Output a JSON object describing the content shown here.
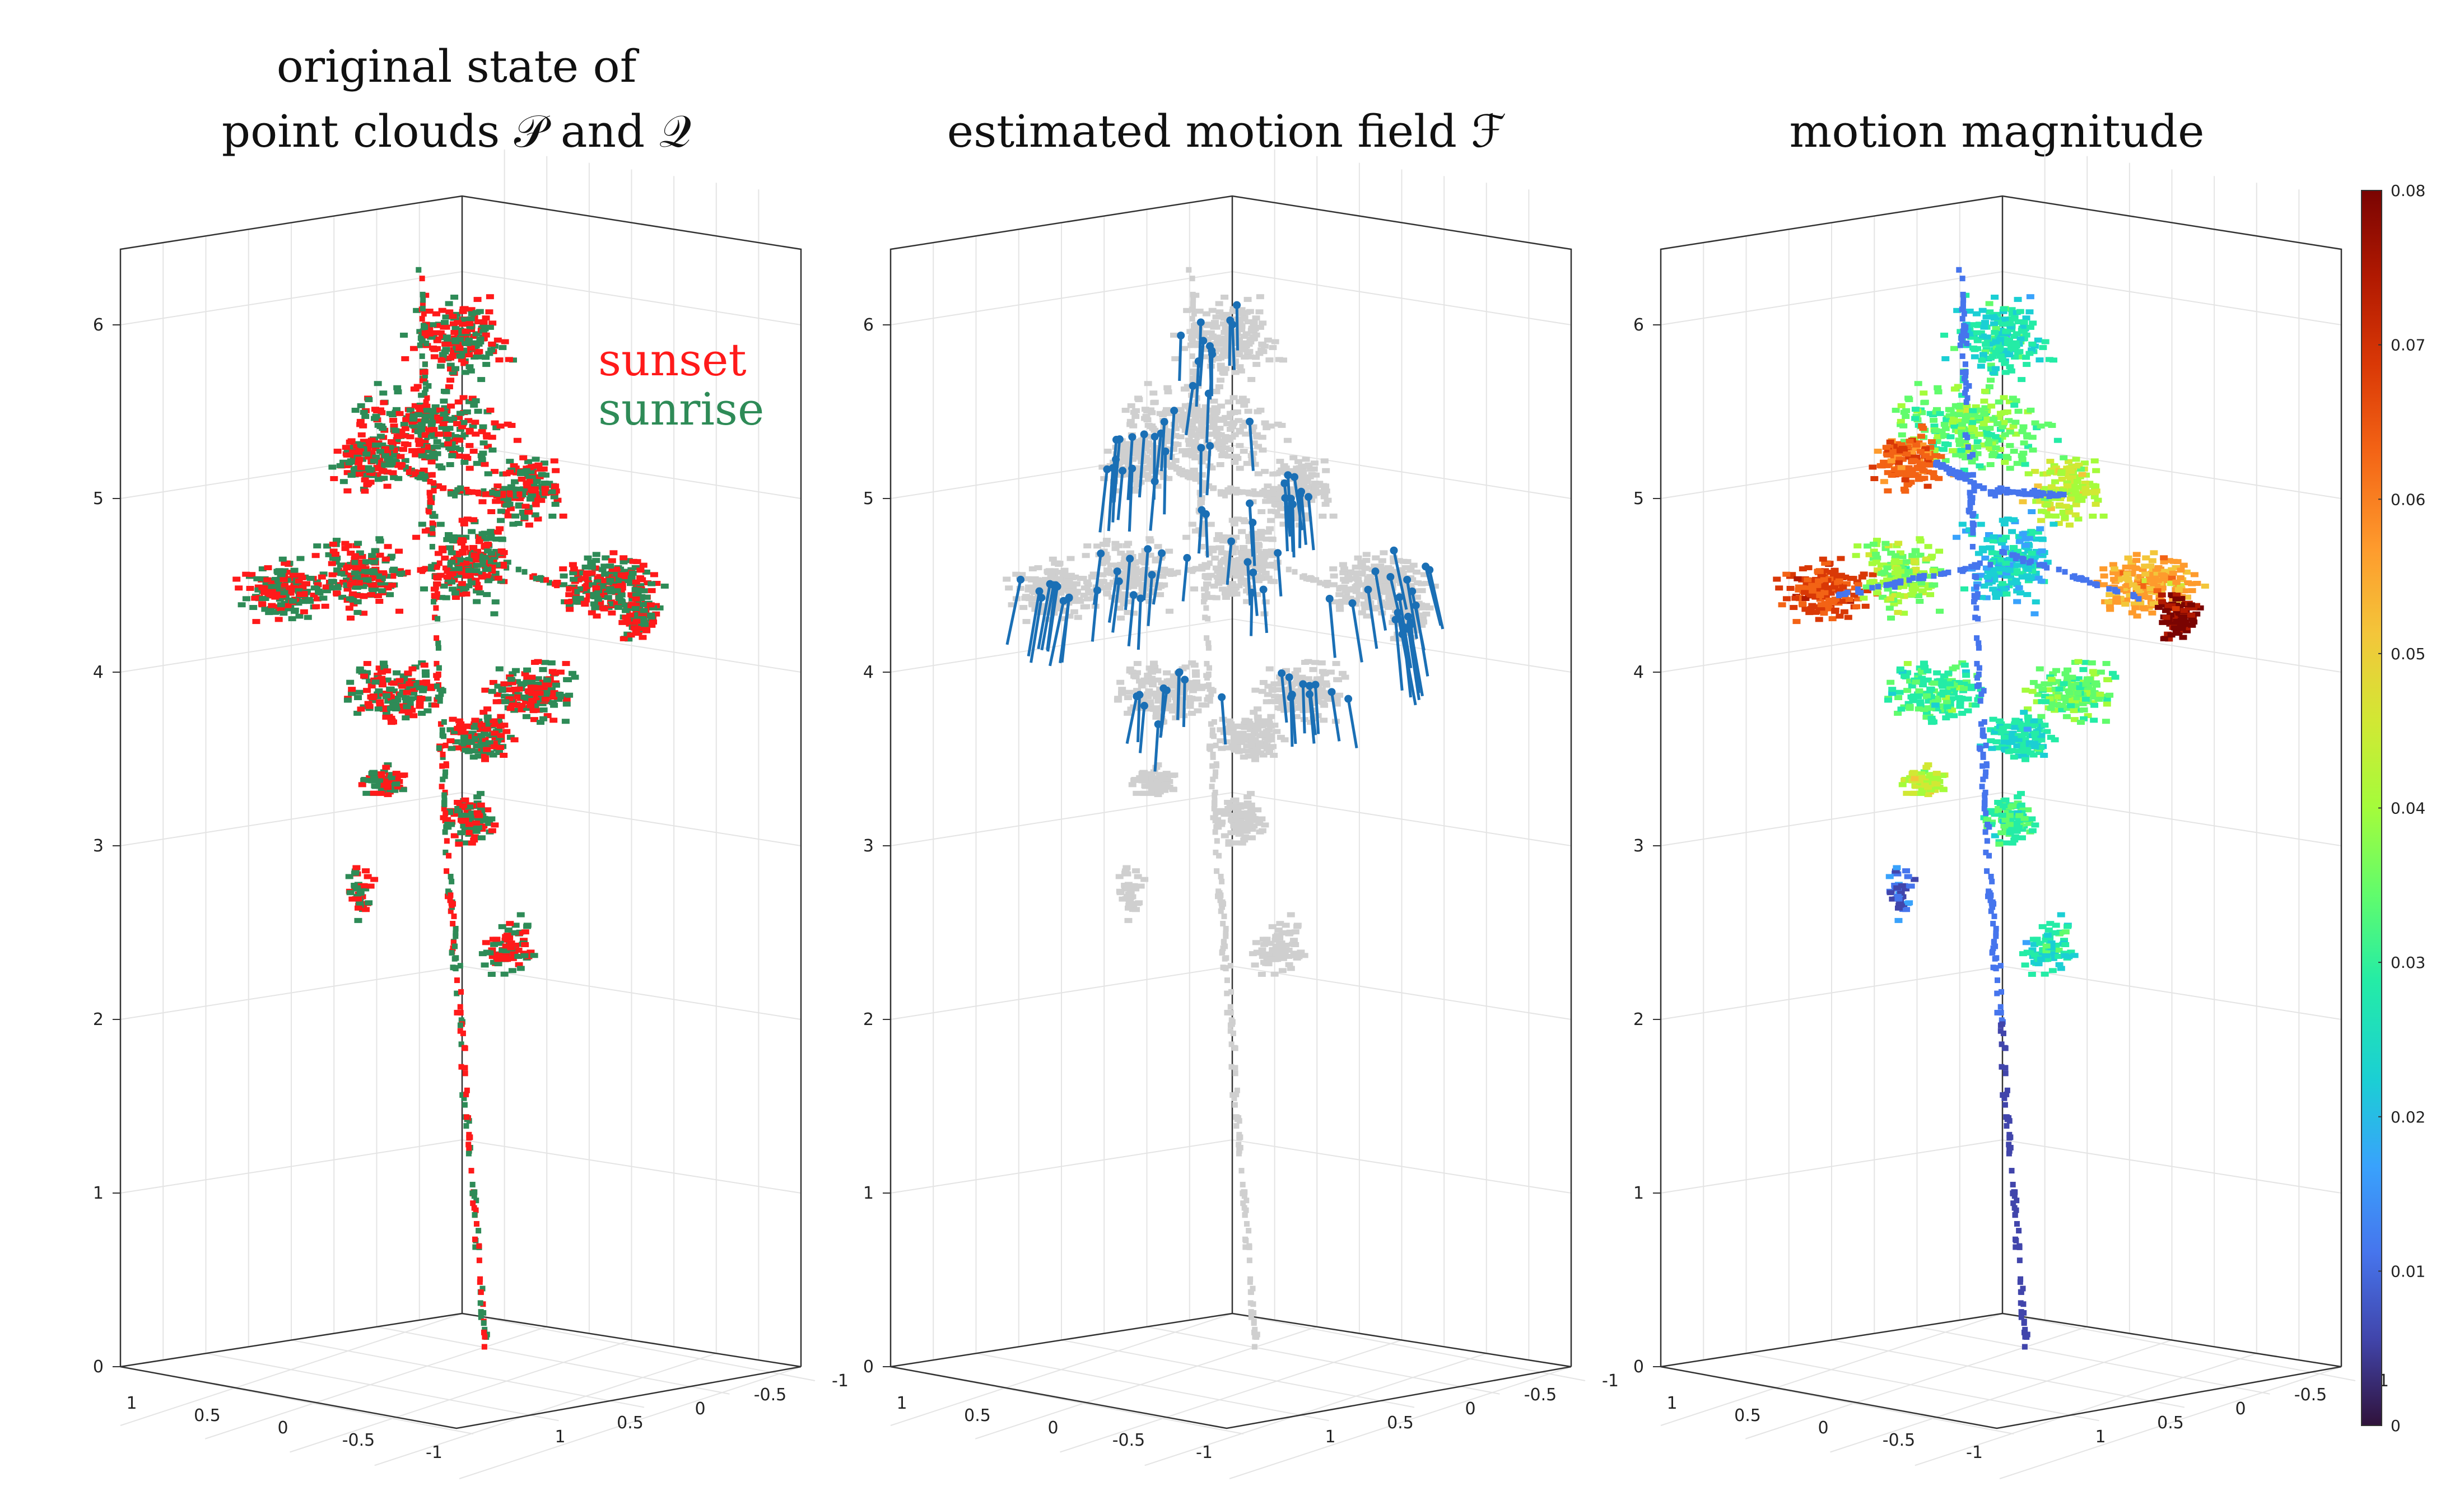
{
  "panels": [
    {
      "title_lines": [
        "original state of",
        "point clouds 𝒫 and 𝒬"
      ]
    },
    {
      "title_lines": [
        "estimated motion field ℱ"
      ]
    },
    {
      "title_lines": [
        "motion magnitude"
      ]
    }
  ],
  "legend": [
    {
      "label": "sunset",
      "color": "#ff1a1a"
    },
    {
      "label": "sunrise",
      "color": "#2e8b57"
    }
  ],
  "chart_data": [
    {
      "type": "scatter",
      "subtype": "3d point cloud",
      "title": "original state of point clouds 𝒫 and 𝒬",
      "series": [
        {
          "name": "sunset",
          "color": "#ff1a1a"
        },
        {
          "name": "sunrise",
          "color": "#2e8b57"
        }
      ],
      "x_ticks": [
        "1",
        "0.5",
        "0",
        "-0.5",
        "-1"
      ],
      "y_ticks": [
        "1",
        "0.5",
        "0",
        "-0.5",
        "-1"
      ],
      "z_ticks": [
        "0",
        "1",
        "2",
        "3",
        "4",
        "5",
        "6"
      ],
      "xlim": [
        -1,
        1
      ],
      "ylim": [
        -1,
        1
      ],
      "zlim": [
        0,
        6.5
      ],
      "grid": true
    },
    {
      "type": "scatter",
      "subtype": "3d point cloud with motion vectors",
      "title": "estimated motion field ℱ",
      "point_color": "#cccccc",
      "vector_color": "#1a6fb5",
      "x_ticks": [
        "1",
        "0.5",
        "0",
        "-0.5",
        "-1"
      ],
      "y_ticks": [
        "1",
        "0.5",
        "0",
        "-0.5",
        "-1"
      ],
      "z_ticks": [
        "0",
        "1",
        "2",
        "3",
        "4",
        "5",
        "6"
      ],
      "xlim": [
        -1,
        1
      ],
      "ylim": [
        -1,
        1
      ],
      "zlim": [
        0,
        6.5
      ],
      "grid": true
    },
    {
      "type": "scatter",
      "subtype": "3d point cloud colored by magnitude",
      "title": "motion magnitude",
      "colormap": "turbo",
      "colorbar": {
        "min": 0,
        "max": 0.08,
        "ticks": [
          "0",
          "0.01",
          "0.02",
          "0.03",
          "0.04",
          "0.05",
          "0.06",
          "0.07",
          "0.08"
        ],
        "placement": "right"
      },
      "x_ticks": [
        "1",
        "0.5",
        "0",
        "-0.5",
        "-1"
      ],
      "y_ticks": [
        "1",
        "0.5",
        "0",
        "-0.5",
        "-1"
      ],
      "z_ticks": [
        "0",
        "1",
        "2",
        "3",
        "4",
        "5",
        "6"
      ],
      "xlim": [
        -1,
        1
      ],
      "ylim": [
        -1,
        1
      ],
      "zlim": [
        0,
        6.5
      ],
      "grid": true
    }
  ]
}
